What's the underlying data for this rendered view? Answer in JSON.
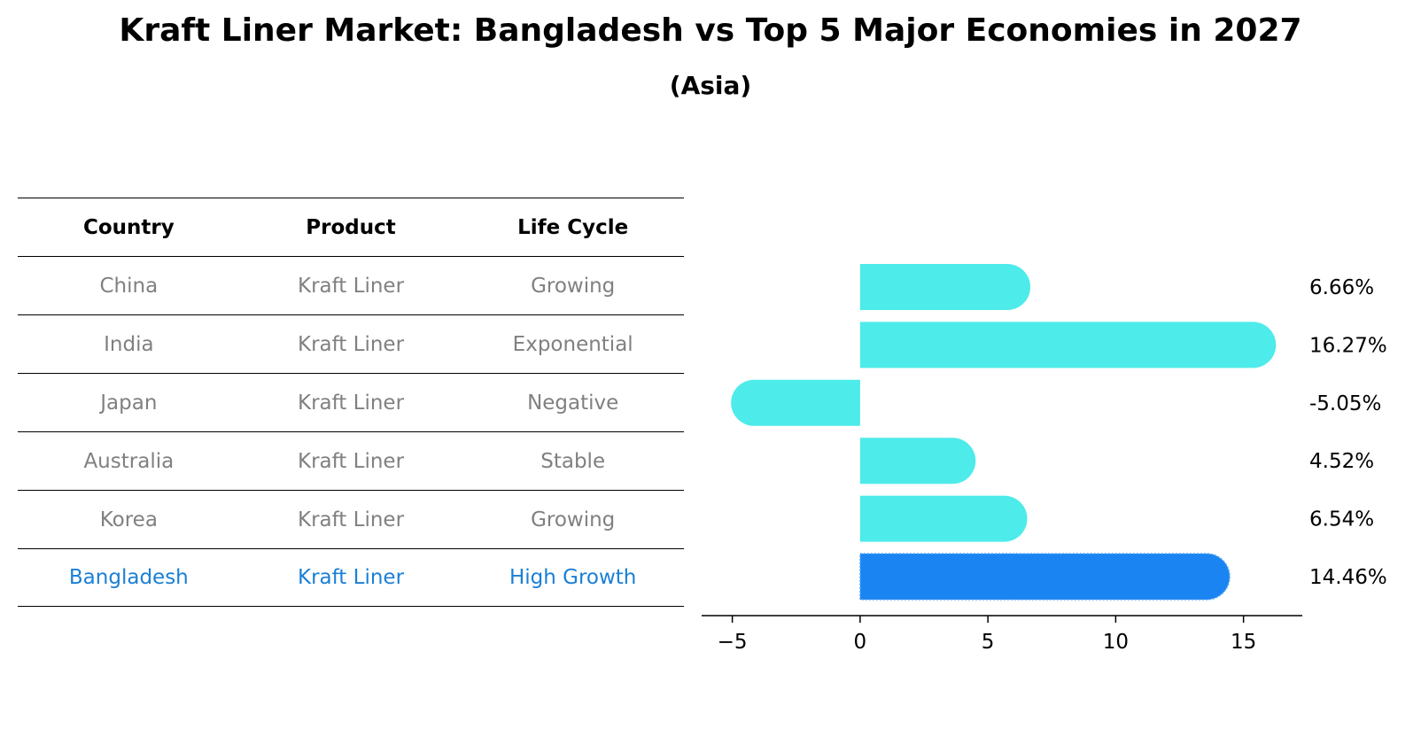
{
  "title": "Kraft Liner Market: Bangladesh vs Top 5 Major Economies in 2027",
  "subtitle": "(Asia)",
  "table": {
    "headers": [
      "Country",
      "Product",
      "Life Cycle"
    ],
    "rows": [
      {
        "country": "China",
        "product": "Kraft Liner",
        "life_cycle": "Growing"
      },
      {
        "country": "India",
        "product": "Kraft Liner",
        "life_cycle": "Exponential"
      },
      {
        "country": "Japan",
        "product": "Kraft Liner",
        "life_cycle": "Negative"
      },
      {
        "country": "Australia",
        "product": "Kraft Liner",
        "life_cycle": "Stable"
      },
      {
        "country": "Korea",
        "product": "Kraft Liner",
        "life_cycle": "Growing"
      },
      {
        "country": "Bangladesh",
        "product": "Kraft Liner",
        "life_cycle": "High Growth"
      }
    ],
    "text_color": "#808080",
    "highlight_color": "#1a7fd6"
  },
  "chart_data": {
    "type": "bar",
    "orientation": "horizontal",
    "categories": [
      "China",
      "India",
      "Japan",
      "Australia",
      "Korea",
      "Bangladesh"
    ],
    "values": [
      6.66,
      16.27,
      -5.05,
      4.52,
      6.54,
      14.46
    ],
    "value_labels": [
      "6.66%",
      "16.27%",
      "-5.05%",
      "4.52%",
      "6.54%",
      "14.46%"
    ],
    "xlim": [
      -6.2,
      17.3
    ],
    "xticks": [
      -5,
      0,
      5,
      10,
      15
    ],
    "xtick_labels": [
      "−5",
      "0",
      "5",
      "10",
      "15"
    ],
    "grid": false,
    "colors": {
      "default": "#4debea",
      "highlight": "#1a84f2"
    },
    "highlight": "Bangladesh"
  }
}
